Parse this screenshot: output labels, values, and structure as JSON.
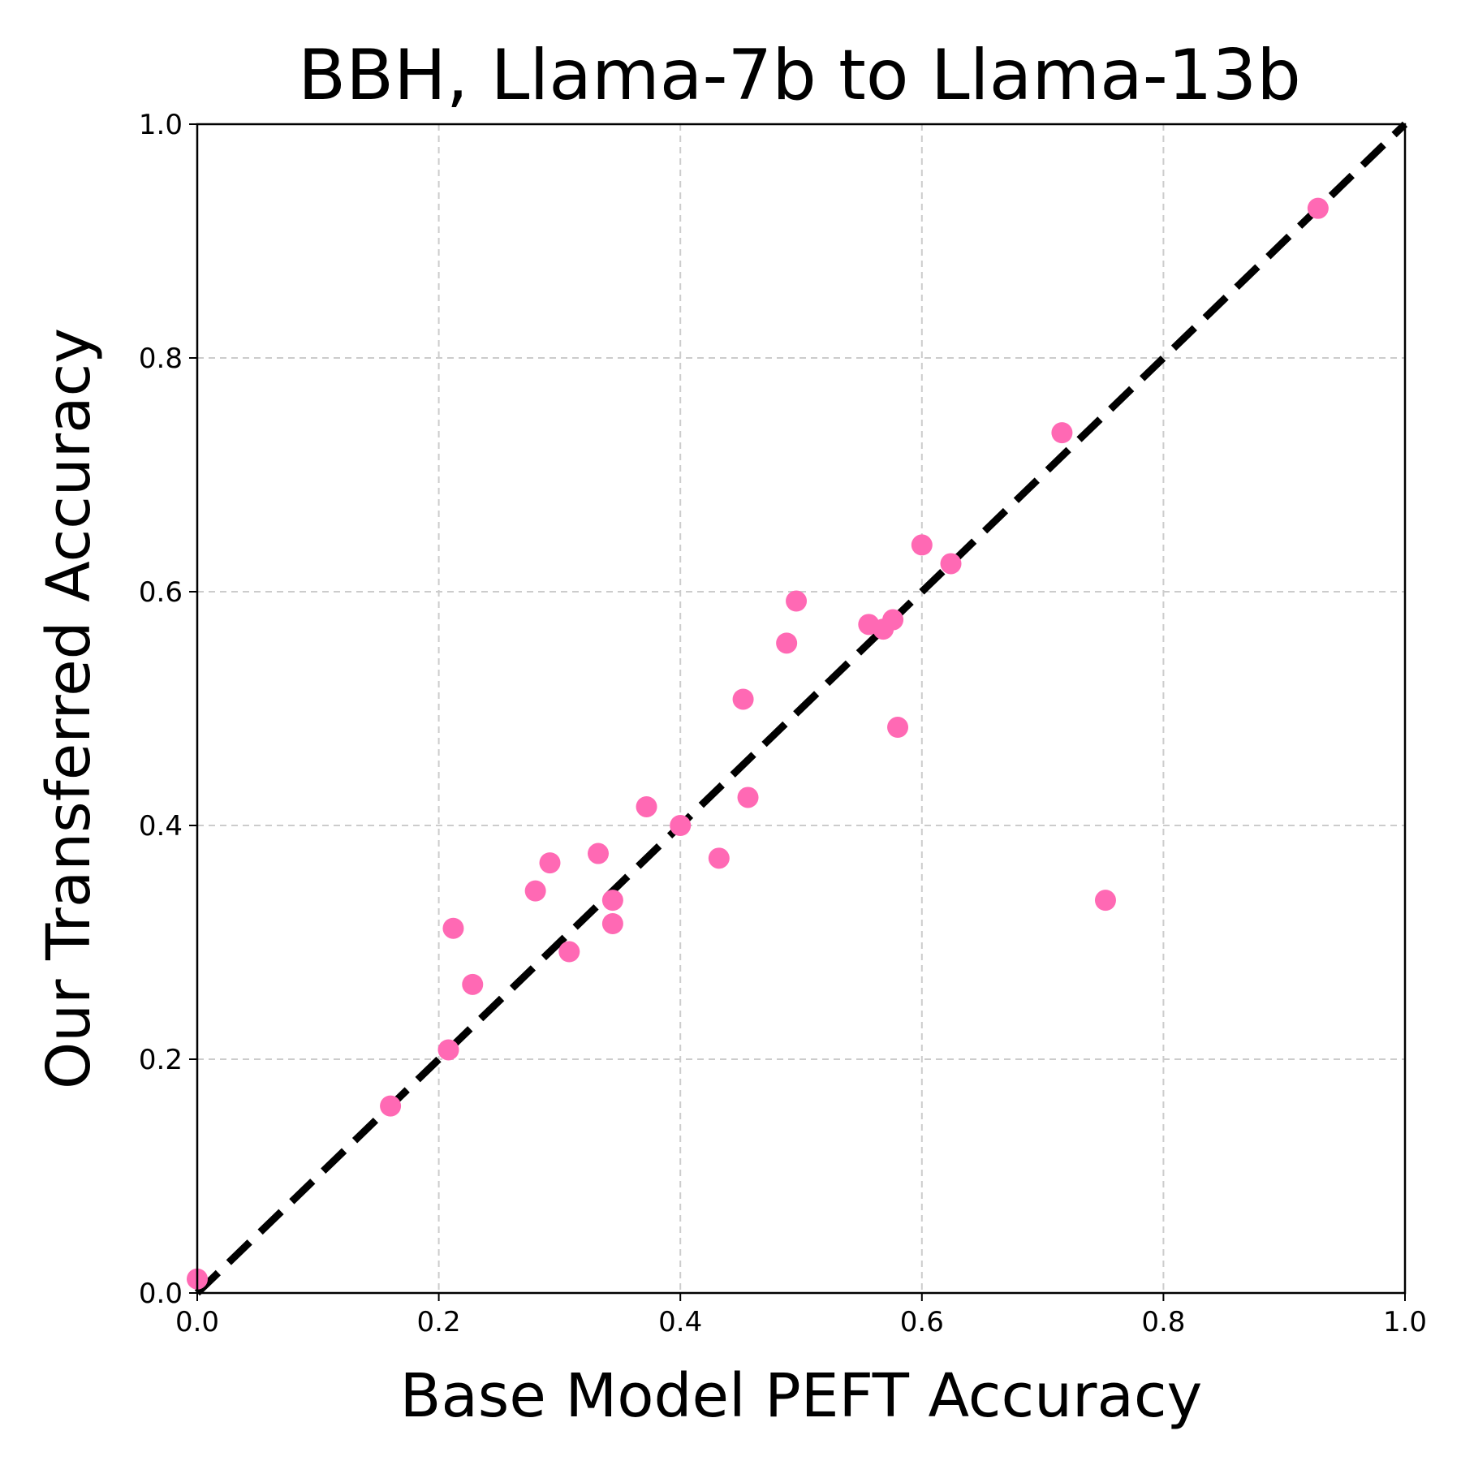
{
  "chart_data": {
    "type": "scatter",
    "title": "BBH, Llama-7b to Llama-13b",
    "xlabel": "Base Model PEFT Accuracy",
    "ylabel": "Our Transferred Accuracy",
    "xlim": [
      0.0,
      1.0
    ],
    "ylim": [
      0.0,
      1.0
    ],
    "xticks": [
      "0.0",
      "0.2",
      "0.4",
      "0.6",
      "0.8",
      "1.0"
    ],
    "yticks": [
      "0.0",
      "0.2",
      "0.4",
      "0.6",
      "0.8",
      "1.0"
    ],
    "grid": true,
    "reference_line": {
      "style": "dashed",
      "from": [
        0.0,
        0.0
      ],
      "to": [
        1.0,
        1.0
      ],
      "color": "#000000"
    },
    "series": [
      {
        "color": "#ff69b4",
        "points": [
          [
            0.0,
            0.012
          ],
          [
            0.16,
            0.16
          ],
          [
            0.208,
            0.208
          ],
          [
            0.212,
            0.312
          ],
          [
            0.228,
            0.264
          ],
          [
            0.28,
            0.344
          ],
          [
            0.292,
            0.368
          ],
          [
            0.308,
            0.292
          ],
          [
            0.332,
            0.376
          ],
          [
            0.344,
            0.336
          ],
          [
            0.344,
            0.316
          ],
          [
            0.372,
            0.416
          ],
          [
            0.4,
            0.4
          ],
          [
            0.432,
            0.372
          ],
          [
            0.452,
            0.508
          ],
          [
            0.456,
            0.424
          ],
          [
            0.488,
            0.556
          ],
          [
            0.496,
            0.592
          ],
          [
            0.556,
            0.572
          ],
          [
            0.568,
            0.568
          ],
          [
            0.576,
            0.576
          ],
          [
            0.58,
            0.484
          ],
          [
            0.6,
            0.64
          ],
          [
            0.624,
            0.624
          ],
          [
            0.716,
            0.736
          ],
          [
            0.752,
            0.336
          ],
          [
            0.928,
            0.928
          ]
        ]
      }
    ]
  }
}
